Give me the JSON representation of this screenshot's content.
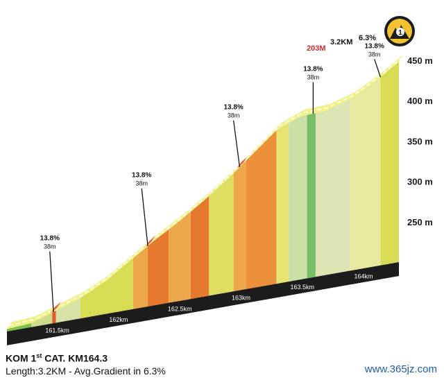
{
  "chart_data": {
    "type": "area",
    "title": "KOM 1st CAT.  KM164.3",
    "subtitle": "Length:3.2KM - Avg.Gradient in 6.3%",
    "xlabel": "",
    "ylabel": "",
    "y_ticks": [
      "250 m",
      "300 m",
      "350 m",
      "400 m",
      "450 m"
    ],
    "y_tick_values": [
      250,
      300,
      350,
      400,
      450
    ],
    "x_ticks": [
      "161.5km",
      "162km",
      "162.5km",
      "163km",
      "163.5km",
      "164km"
    ],
    "x_tick_values": [
      161.5,
      162.0,
      162.5,
      163.0,
      163.5,
      164.0
    ],
    "xlim": [
      161.1,
      164.3
    ],
    "segments": [
      {
        "from": 161.1,
        "to": 161.3,
        "color": "#7cc04b"
      },
      {
        "from": 161.3,
        "to": 161.47,
        "color": "#ccdc8a"
      },
      {
        "from": 161.47,
        "to": 161.5,
        "color": "#e55a2b"
      },
      {
        "from": 161.5,
        "to": 161.7,
        "color": "#d6e2a6"
      },
      {
        "from": 161.7,
        "to": 162.13,
        "color": "#d8dc55"
      },
      {
        "from": 162.13,
        "to": 162.25,
        "color": "#eea84c"
      },
      {
        "from": 162.25,
        "to": 162.42,
        "color": "#e6792e"
      },
      {
        "from": 162.42,
        "to": 162.6,
        "color": "#eea84c"
      },
      {
        "from": 162.6,
        "to": 162.75,
        "color": "#e6792e"
      },
      {
        "from": 162.75,
        "to": 162.95,
        "color": "#dede62"
      },
      {
        "from": 162.95,
        "to": 163.05,
        "color": "#eea84c"
      },
      {
        "from": 163.05,
        "to": 163.3,
        "color": "#ec8f3b"
      },
      {
        "from": 163.3,
        "to": 163.4,
        "color": "#e6e373"
      },
      {
        "from": 163.4,
        "to": 163.55,
        "color": "#ccdfa6"
      },
      {
        "from": 163.55,
        "to": 163.62,
        "color": "#77c069"
      },
      {
        "from": 163.62,
        "to": 163.9,
        "color": "#dde5b5"
      },
      {
        "from": 163.9,
        "to": 164.15,
        "color": "#e8e8a0"
      },
      {
        "from": 164.15,
        "to": 164.3,
        "color": "#d8dc55"
      }
    ],
    "elevation": [
      {
        "x": 161.1,
        "y": 203
      },
      {
        "x": 161.3,
        "y": 205
      },
      {
        "x": 161.5,
        "y": 215
      },
      {
        "x": 161.7,
        "y": 225
      },
      {
        "x": 161.9,
        "y": 240
      },
      {
        "x": 162.1,
        "y": 260
      },
      {
        "x": 162.3,
        "y": 280
      },
      {
        "x": 162.5,
        "y": 298
      },
      {
        "x": 162.7,
        "y": 318
      },
      {
        "x": 162.9,
        "y": 340
      },
      {
        "x": 163.1,
        "y": 365
      },
      {
        "x": 163.3,
        "y": 390
      },
      {
        "x": 163.5,
        "y": 402
      },
      {
        "x": 163.7,
        "y": 403
      },
      {
        "x": 163.9,
        "y": 412
      },
      {
        "x": 164.1,
        "y": 428
      },
      {
        "x": 164.3,
        "y": 448
      }
    ],
    "gradient_labels": [
      {
        "x": 161.48,
        "y": 212,
        "percent": "13.8%",
        "length": "38m",
        "label_km": 161.45,
        "label_elev": 293
      },
      {
        "x": 162.25,
        "y": 276,
        "percent": "13.8%",
        "length": "38m",
        "label_km": 162.2,
        "label_elev": 351
      },
      {
        "x": 163.0,
        "y": 352,
        "percent": "13.8%",
        "length": "38m",
        "label_km": 162.95,
        "label_elev": 415
      },
      {
        "x": 163.6,
        "y": 403,
        "percent": "13.8%",
        "length": "38m",
        "label_km": 163.6,
        "label_elev": 445
      },
      {
        "x": 164.15,
        "y": 438,
        "percent": "13.8%",
        "length": "38m",
        "label_km": 164.1,
        "label_elev": 460
      }
    ],
    "summit": {
      "start_elevation": "203M",
      "length": "3.2KM",
      "gradient": "6.3%",
      "category": "1"
    },
    "footer": {
      "line1_pre": "KOM 1",
      "line1_sup": "st",
      "line1_post": " CAT.  KM164.3",
      "line2": "Length:3.2KM - Avg.Gradient in 6.3%"
    },
    "watermark": "www.365jz.com",
    "colors": {
      "base": "#1c1c1c",
      "top_band": "#eef07a",
      "badge_fill": "#f2c230",
      "badge_ring": "#1c1c1c",
      "accent_red": "#d9262c"
    }
  }
}
